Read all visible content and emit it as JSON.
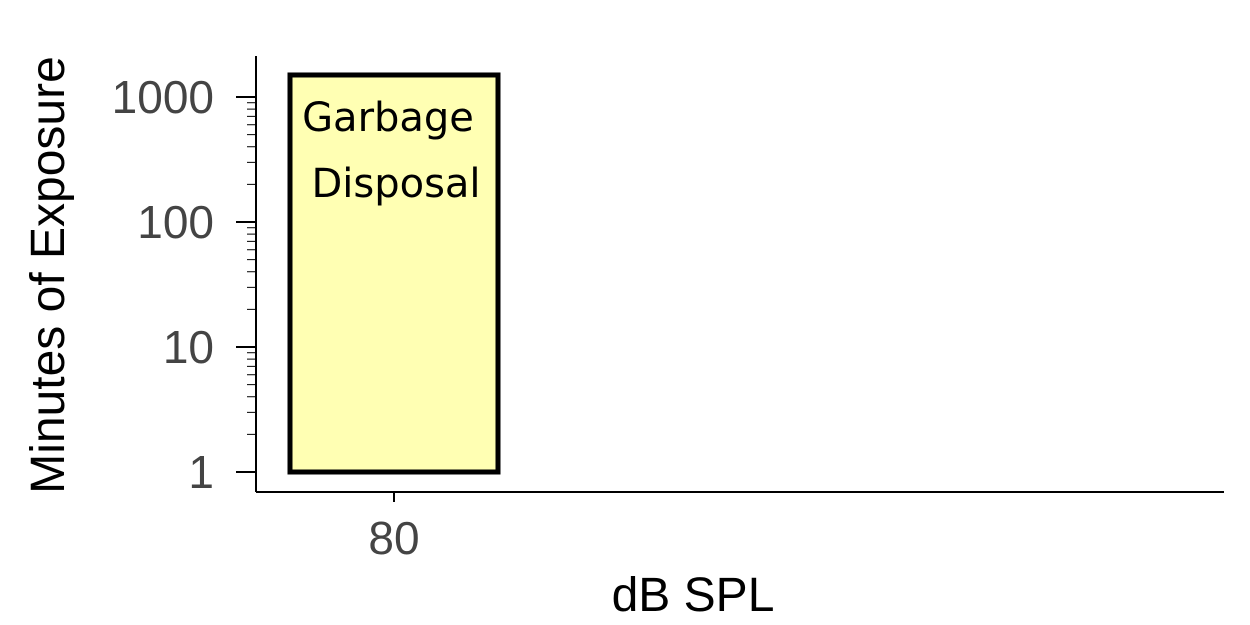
{
  "chart_data": {
    "type": "bar",
    "title": "",
    "xlabel": "dB SPL",
    "ylabel": "Minutes of Exposure",
    "x_ticks": [
      "80"
    ],
    "y_scale": "log",
    "y_ticks": [
      {
        "value": 1,
        "label": "1"
      },
      {
        "value": 10,
        "label": "10"
      },
      {
        "value": 100,
        "label": "100"
      },
      {
        "value": 1000,
        "label": "1000"
      }
    ],
    "ylim": [
      1,
      1600
    ],
    "bars": [
      {
        "x": 80,
        "y_bottom": 1,
        "y_top": 1500,
        "label_lines": [
          "Garbage",
          "Disposal"
        ],
        "fill": "#ffffb3",
        "stroke": "#000000"
      }
    ],
    "grid": false,
    "legend": "none"
  }
}
